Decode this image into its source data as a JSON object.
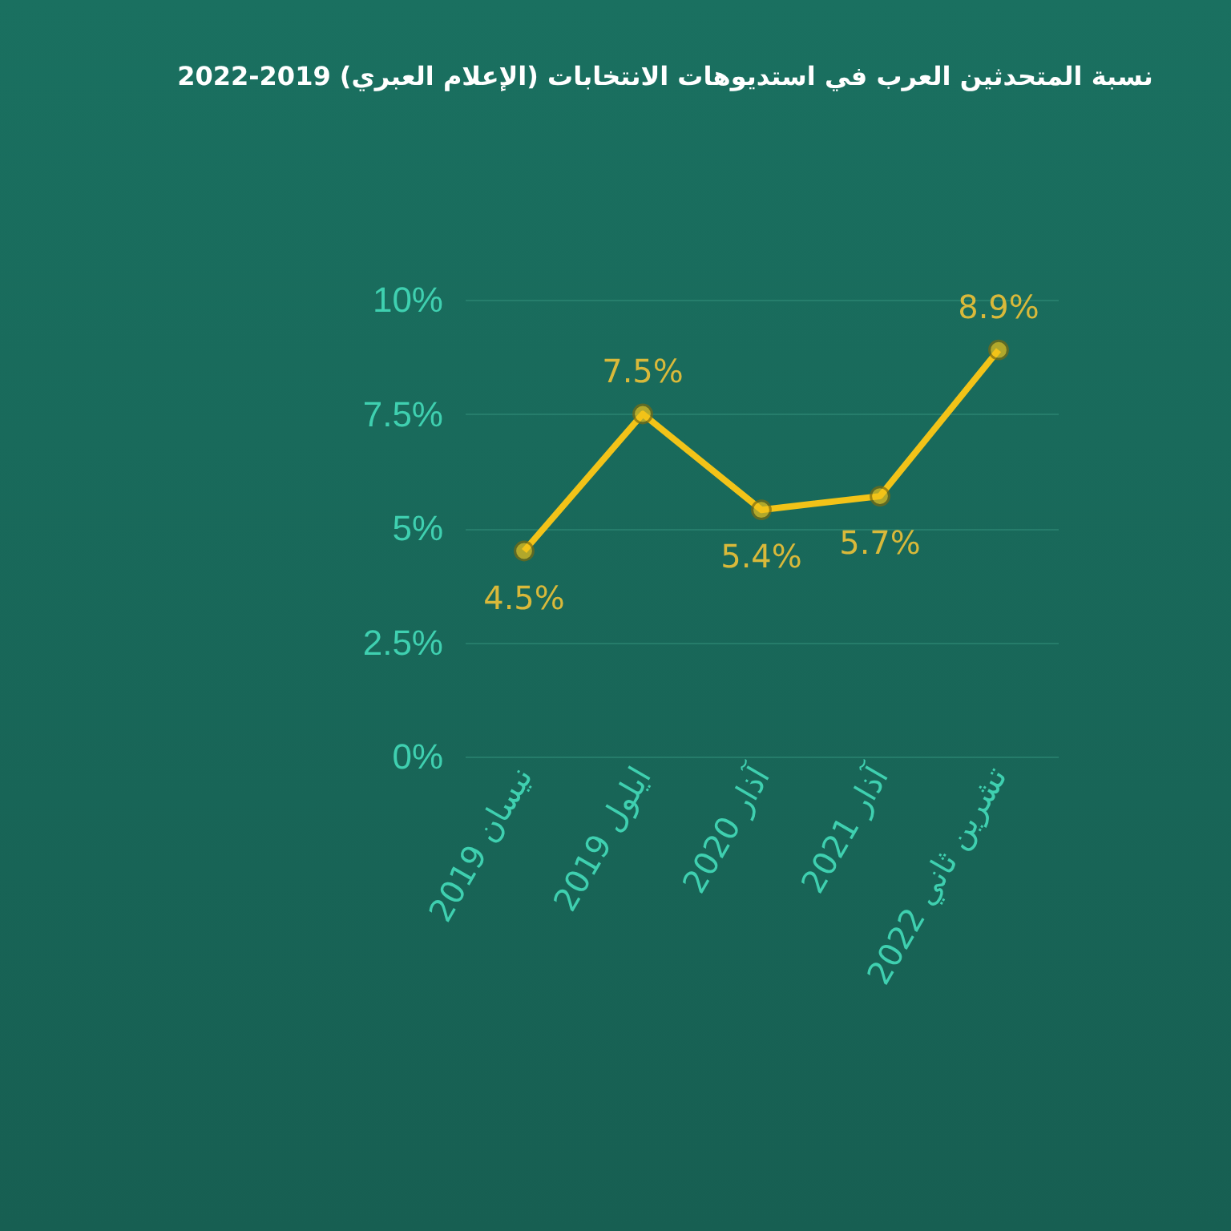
{
  "chart_data": {
    "type": "line",
    "title": "نسبة المتحدثين العرب في استديوهات الانتخابات (الإعلام العبري) 2019-2022",
    "categories": [
      "2019 نيسان",
      "2019 ايلول",
      "2020 آذار",
      "2021 آذار",
      "2022 تشرين ثاني"
    ],
    "series": [
      {
        "color": "#f2c318",
        "values": [
          4.5,
          7.5,
          5.4,
          5.7,
          8.9
        ],
        "value_labels": [
          "4.5%",
          "7.5%",
          "5.4%",
          "5.7%",
          "8.9%"
        ]
      }
    ],
    "ylim": [
      0,
      10
    ],
    "yticks": [
      {
        "value": 0,
        "label": "0%"
      },
      {
        "value": 2.5,
        "label": "2.5%"
      },
      {
        "value": 5,
        "label": "5%"
      },
      {
        "value": 7.5,
        "label": "7.5%"
      },
      {
        "value": 10,
        "label": "10%"
      }
    ],
    "grid": "y",
    "marker": "circle"
  }
}
